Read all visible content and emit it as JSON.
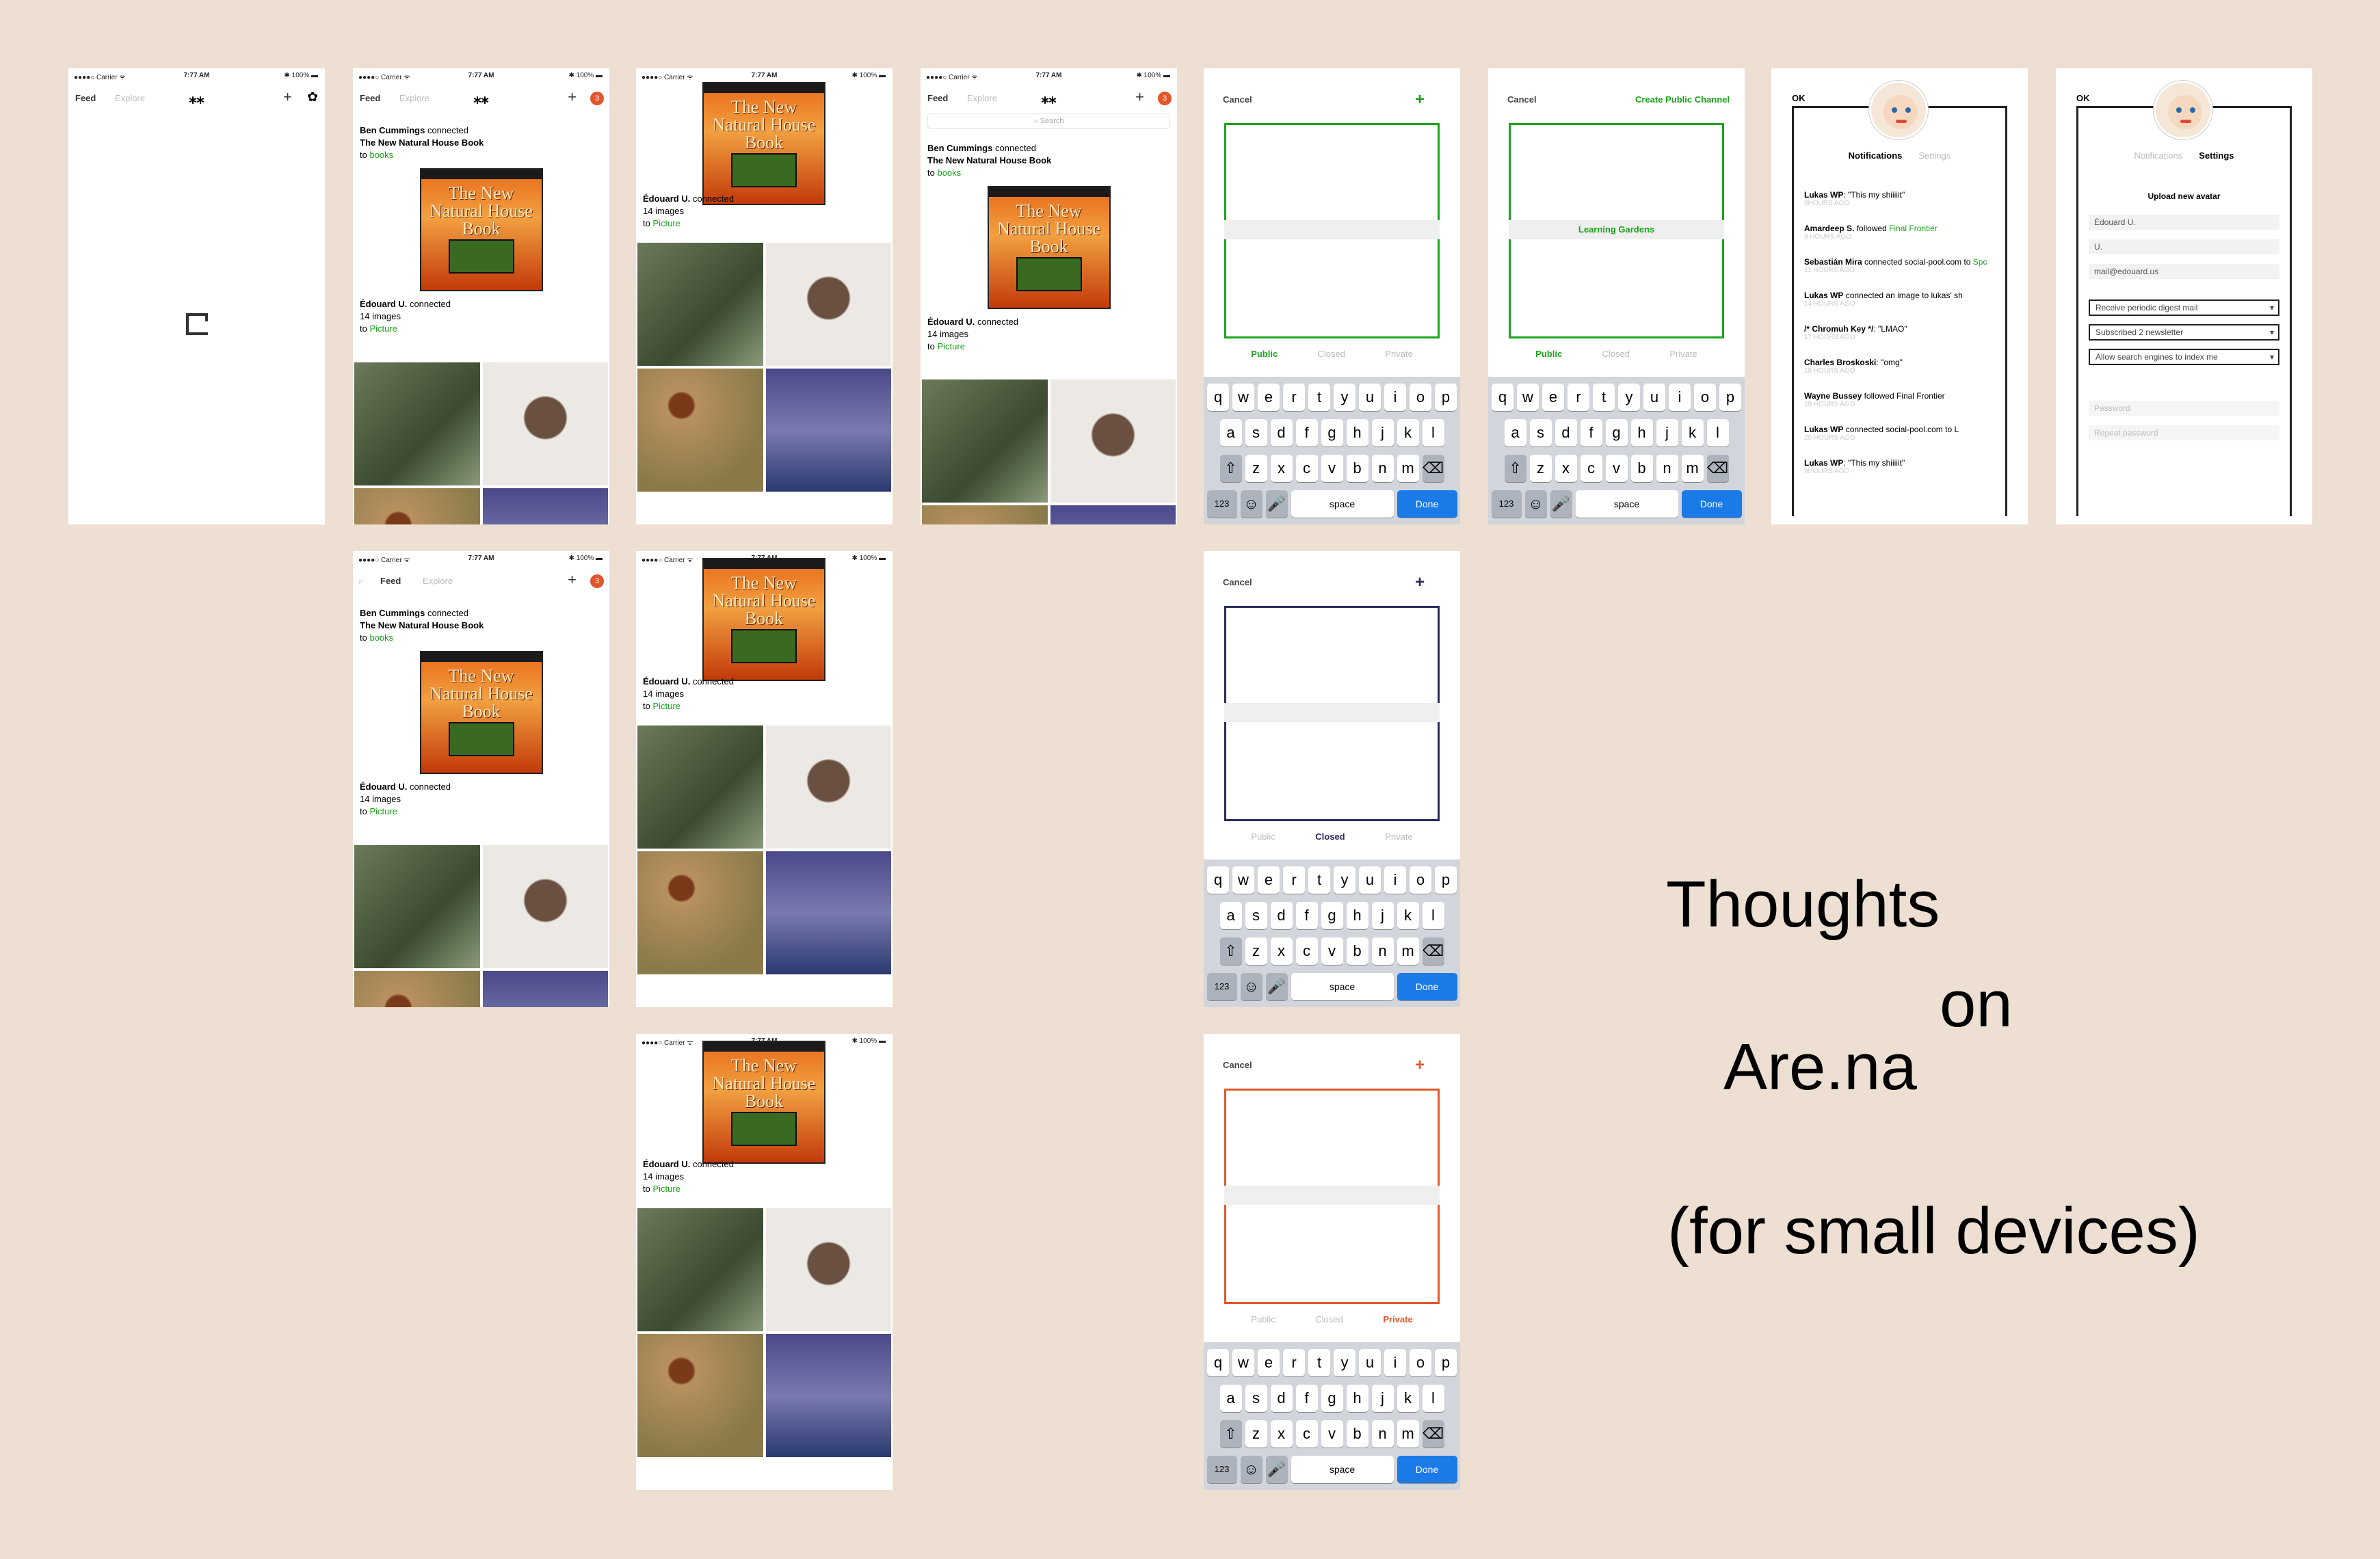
{
  "status": {
    "carrier": "●●●●○ Carrier ᯤ",
    "time": "7:77 AM",
    "battery": "✱ 100% ▬"
  },
  "nav": {
    "feed": "Feed",
    "explore": "Explore",
    "logo": "⁎⁎",
    "plus": "+",
    "badge": "3",
    "search": "Search"
  },
  "feed": {
    "item1_user": "Ben Cummings",
    "item1_action": " connected",
    "item1_title": "The New Natural House Book",
    "item1_to": "to ",
    "item1_channel": "books",
    "book_title": "The New Natural House Book",
    "item2_user": "Édouard U.",
    "item2_action": " connected",
    "item2_count": "14 images",
    "item2_to": "to ",
    "item2_channel": "Picture"
  },
  "form": {
    "cancel": "Cancel",
    "plus": "+",
    "create": "Create Public Channel",
    "channel_name": "Learning Gardens",
    "public": "Public",
    "closed": "Closed",
    "private": "Private"
  },
  "keyboard": {
    "row1": [
      "q",
      "w",
      "e",
      "r",
      "t",
      "y",
      "u",
      "i",
      "o",
      "p"
    ],
    "row2": [
      "a",
      "s",
      "d",
      "f",
      "g",
      "h",
      "j",
      "k",
      "l"
    ],
    "row3": [
      "z",
      "x",
      "c",
      "v",
      "b",
      "n",
      "m"
    ],
    "shift": "⇧",
    "del": "⌫",
    "num": "123",
    "emoji": "☺",
    "mic": "🎤",
    "space": "space",
    "done": "Done"
  },
  "profile": {
    "ok": "OK",
    "tab_notifications": "Notifications",
    "tab_settings": "Settings",
    "notes": [
      {
        "user": "Lukas WP",
        "text": ": \"This my shiiiiit\"",
        "ago": "9HOURS AGO"
      },
      {
        "user": "Amardeep S.",
        "text": " followed ",
        "link": "Final Frontier",
        "ago": "9 HOURS AGO"
      },
      {
        "user": "Sebastián Mira",
        "text": " connected social-pool.com to ",
        "link": "Spc",
        "ago": "11 HOURS AGO"
      },
      {
        "user": "Lukas WP",
        "text": " connected an image to lukas' sh",
        "ago": "14 HOURS AGO"
      },
      {
        "user": "/* Chromuh Key */",
        "text": ": \"LMAO\"",
        "ago": "17 HOURS AGO"
      },
      {
        "user": "Charles Broskoski",
        "text": ": \"omg\"",
        "ago": "18 HOURS AGO"
      },
      {
        "user": "Wayne Bussey",
        "text": " followed Final Frontier",
        "ago": "19 HOURS AGO"
      },
      {
        "user": "Lukas WP",
        "text": " connected social-pool.com to L",
        "ago": "20 HOURS AGO"
      },
      {
        "user": "Lukas WP",
        "text": ": \"This my shiiiiit\"",
        "ago": "9HOURS AGO"
      }
    ],
    "upload": "Upload new avatar",
    "first": "Édouard U.",
    "last": "U.",
    "email": "mail@edouard.us",
    "opt1": "Receive periodic digest mail",
    "opt2": "Subscribed 2 newsletter",
    "opt3": "Allow search engines to index me",
    "password": "Password",
    "repeat": "Repeat password"
  },
  "headline": {
    "l1": "Thoughts",
    "l2": "on",
    "l3": "Are.na",
    "l4": "(for small devices)"
  },
  "colors": {
    "accent_green": "#1aa31a",
    "closed_navy": "#2a2a5a",
    "private_orange": "#e2562c",
    "badge": "#e2562c",
    "done_blue": "#1a7ae8"
  }
}
